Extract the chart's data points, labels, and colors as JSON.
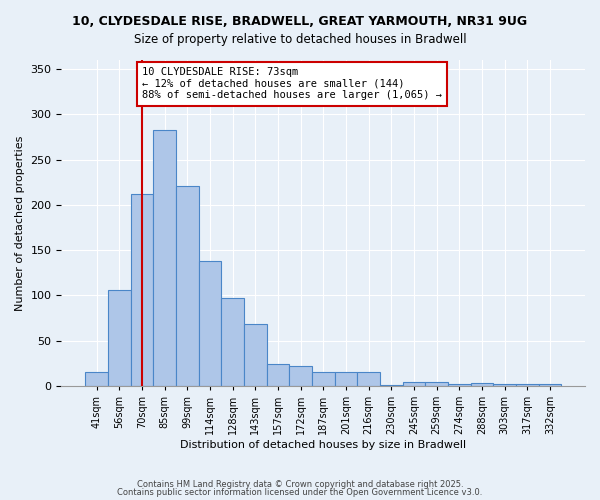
{
  "title1": "10, CLYDESDALE RISE, BRADWELL, GREAT YARMOUTH, NR31 9UG",
  "title2": "Size of property relative to detached houses in Bradwell",
  "xlabel": "Distribution of detached houses by size in Bradwell",
  "ylabel": "Number of detached properties",
  "bins": [
    "41sqm",
    "56sqm",
    "70sqm",
    "85sqm",
    "99sqm",
    "114sqm",
    "128sqm",
    "143sqm",
    "157sqm",
    "172sqm",
    "187sqm",
    "201sqm",
    "216sqm",
    "230sqm",
    "245sqm",
    "259sqm",
    "274sqm",
    "288sqm",
    "303sqm",
    "317sqm",
    "332sqm"
  ],
  "values": [
    15,
    106,
    212,
    283,
    221,
    138,
    97,
    69,
    24,
    22,
    15,
    15,
    15,
    1,
    4,
    5,
    2,
    3,
    2,
    2,
    2
  ],
  "bar_color": "#aec6e8",
  "bar_edge_color": "#4a86c8",
  "bg_color": "#e8f0f8",
  "vline_x": 2,
  "vline_color": "#cc0000",
  "annotation_text": "10 CLYDESDALE RISE: 73sqm\n← 12% of detached houses are smaller (144)\n88% of semi-detached houses are larger (1,065) →",
  "annotation_box_color": "#ffffff",
  "annotation_box_edge": "#cc0000",
  "ylim": [
    0,
    360
  ],
  "yticks": [
    0,
    50,
    100,
    150,
    200,
    250,
    300,
    350
  ],
  "footer1": "Contains HM Land Registry data © Crown copyright and database right 2025.",
  "footer2": "Contains public sector information licensed under the Open Government Licence v3.0."
}
